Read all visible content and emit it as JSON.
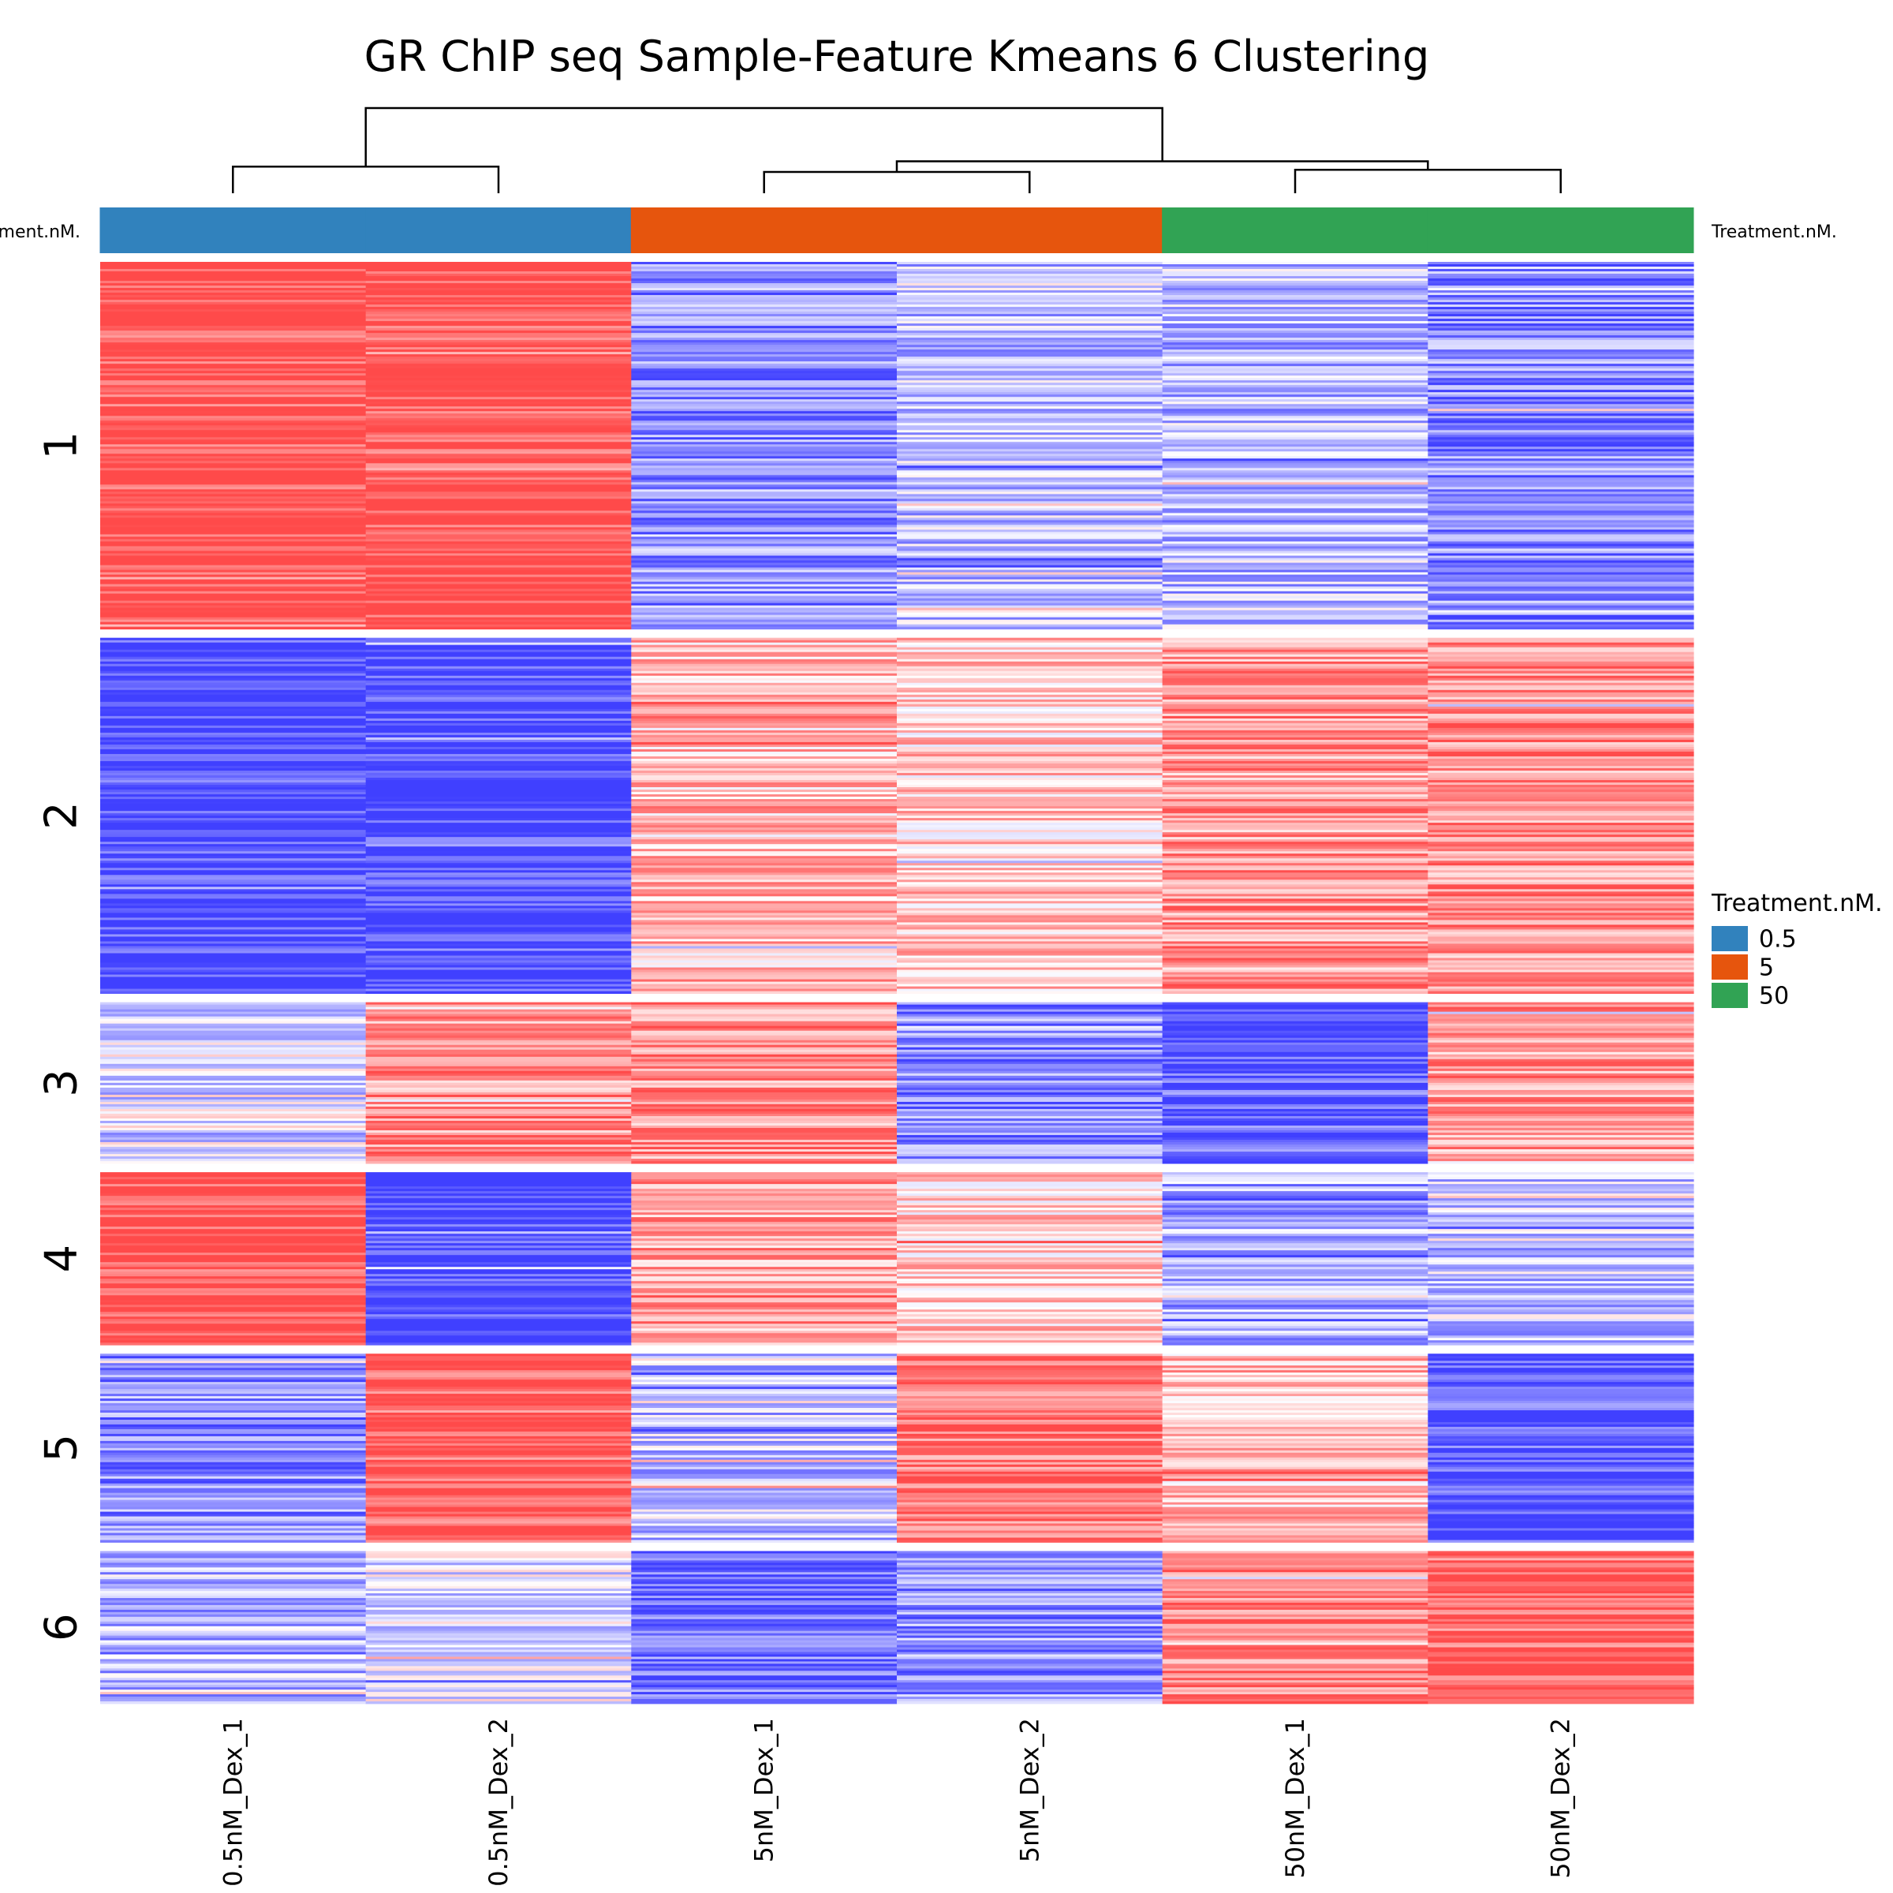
{
  "chart_data": {
    "type": "heatmap",
    "title": "GR ChIP seq Sample-Feature Kmeans 6 Clustering",
    "columns": [
      "0.5nM_Dex_1",
      "0.5nM_Dex_2",
      "5nM_Dex_1",
      "5nM_Dex_2",
      "50nM_Dex_1",
      "50nM_Dex_2"
    ],
    "annotation": {
      "name": "Treatment.nM.",
      "groups": [
        "0.5",
        "0.5",
        "5",
        "5",
        "50",
        "50"
      ],
      "legend_title": "Treatment.nM.",
      "legend": [
        {
          "label": "0.5",
          "color": "#3182bd"
        },
        {
          "label": "5",
          "color": "#e6550d"
        },
        {
          "label": "50",
          "color": "#31a354"
        }
      ]
    },
    "row_clusters": [
      {
        "label": "1",
        "relative_size": 0.255,
        "column_means": [
          1.0,
          1.0,
          -0.55,
          -0.3,
          -0.35,
          -0.6
        ]
      },
      {
        "label": "2",
        "relative_size": 0.247,
        "column_means": [
          -1.0,
          -1.0,
          0.35,
          0.3,
          0.55,
          0.6
        ]
      },
      {
        "label": "3",
        "relative_size": 0.112,
        "column_means": [
          -0.15,
          0.6,
          0.6,
          -0.6,
          -0.85,
          0.55
        ]
      },
      {
        "label": "4",
        "relative_size": 0.12,
        "column_means": [
          1.0,
          -1.0,
          0.5,
          0.3,
          -0.45,
          -0.3
        ]
      },
      {
        "label": "5",
        "relative_size": 0.131,
        "column_means": [
          -0.6,
          0.9,
          -0.3,
          0.75,
          0.35,
          -0.9
        ]
      },
      {
        "label": "6",
        "relative_size": 0.106,
        "column_means": [
          -0.35,
          -0.15,
          -0.75,
          -0.55,
          0.7,
          0.85
        ]
      }
    ],
    "color_scale": {
      "low": "#4040ff",
      "mid": "#ffffff",
      "high": "#ff4a4a"
    },
    "column_dendrogram": {
      "merges": [
        {
          "left": "0.5nM_Dex_1",
          "right": "0.5nM_Dex_2",
          "height": 0.25
        },
        {
          "left": "5nM_Dex_1",
          "right": "5nM_Dex_2",
          "height": 0.2
        },
        {
          "left": "50nM_Dex_1",
          "right": "50nM_Dex_2",
          "height": 0.22
        },
        {
          "left": "5nM",
          "right": "50nM",
          "height": 0.3
        },
        {
          "left": "0.5nM",
          "right": "5nM+50nM",
          "height": 0.8
        }
      ]
    }
  }
}
